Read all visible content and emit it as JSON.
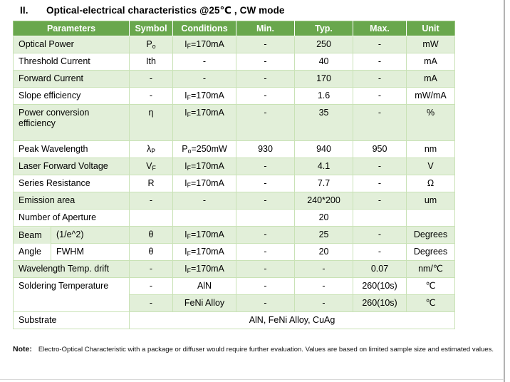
{
  "page": {
    "section_number": "II.",
    "section_title": "Optical-electrical characteristics @25℃ , CW mode"
  },
  "colors": {
    "header_bg": "#69a74d",
    "band_bg": "#e2efd9",
    "grid_border": "#c9e2b6",
    "page_edge": "#b3b3b3"
  },
  "table": {
    "headers": [
      "Parameters",
      "Symbol",
      "Conditions",
      "Min.",
      "Typ.",
      "Max.",
      "Unit"
    ],
    "rows": [
      {
        "param": "Optical Power",
        "symbol": "P~o~",
        "conditions": "I~F~=170mA",
        "min": "-",
        "typ": "250",
        "max": "-",
        "unit": "mW"
      },
      {
        "param": "Threshold Current",
        "symbol": "Ith",
        "conditions": "-",
        "min": "-",
        "typ": "40",
        "max": "-",
        "unit": "mA"
      },
      {
        "param": "Forward Current",
        "symbol": "-",
        "conditions": "-",
        "min": "-",
        "typ": "170",
        "max": "-",
        "unit": "mA"
      },
      {
        "param": "Slope efficiency",
        "symbol": "-",
        "conditions": "I~F~=170mA",
        "min": "-",
        "typ": "1.6",
        "max": "-",
        "unit": "mW/mA"
      },
      {
        "param": "Power conversion efficiency",
        "symbol": "η",
        "conditions": "I~F~=170mA",
        "min": "-",
        "typ": "35",
        "max": "-",
        "unit": "%"
      },
      {
        "param": "Peak Wavelength",
        "symbol": "λ~P~",
        "conditions": "P~o~=250mW",
        "min": "930",
        "typ": "940",
        "max": "950",
        "unit": "nm"
      },
      {
        "param": "Laser Forward Voltage",
        "symbol": "V~F~",
        "conditions": "I~F~=170mA",
        "min": "-",
        "typ": "4.1",
        "max": "-",
        "unit": "V"
      },
      {
        "param": "Series Resistance",
        "symbol": "R",
        "conditions": "I~F~=170mA",
        "min": "-",
        "typ": "7.7",
        "max": "-",
        "unit": "Ω"
      },
      {
        "param": "Emission area",
        "symbol": "-",
        "conditions": "-",
        "min": "-",
        "typ": "240*200",
        "max": "-",
        "unit": "um"
      },
      {
        "param": "Number of Aperture",
        "symbol": "",
        "conditions": "",
        "min": "",
        "typ": "20",
        "max": "",
        "unit": ""
      },
      {
        "param_group": "Beam Angle",
        "sub": "(1/e^2)",
        "symbol": "θ",
        "conditions": "I~F~=170mA",
        "min": "-",
        "typ": "25",
        "max": "-",
        "unit": "Degrees"
      },
      {
        "sub": "FWHM",
        "symbol": "θ",
        "conditions": "I~F~=170mA",
        "min": "-",
        "typ": "20",
        "max": "-",
        "unit": "Degrees"
      },
      {
        "param": "Wavelength Temp. drift",
        "symbol": "-",
        "conditions": "I~F~=170mA",
        "min": "-",
        "typ": "-",
        "max": "0.07",
        "unit": "nm/℃"
      },
      {
        "param_group": "Soldering Temperature",
        "symbol": "-",
        "conditions": "AlN",
        "min": "-",
        "typ": "-",
        "max": "260(10s)",
        "unit": "℃"
      },
      {
        "symbol": "-",
        "conditions": "FeNi Alloy",
        "min": "-",
        "typ": "-",
        "max": "260(10s)",
        "unit": "℃"
      },
      {
        "param": "Substrate",
        "merged_value": "AlN, FeNi Alloy, CuAg"
      }
    ]
  },
  "note": {
    "label": "Note:",
    "text": "Electro-Optical Characteristic with a package or diffuser would require further evaluation. Values are based on limited sample size and estimated values."
  }
}
